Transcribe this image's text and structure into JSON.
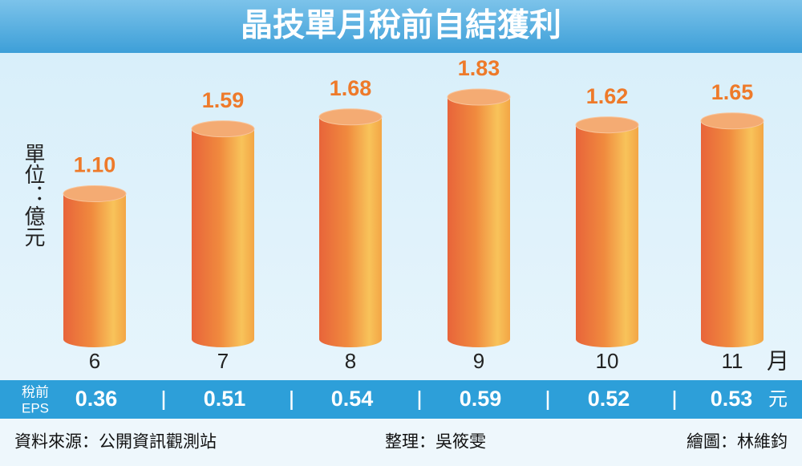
{
  "chart_data": {
    "type": "bar",
    "title": "晶技單月稅前自結獲利",
    "unit_label": "單位：億元",
    "categories": [
      "6",
      "7",
      "8",
      "9",
      "10",
      "11"
    ],
    "x_label": "月",
    "values": [
      1.1,
      1.59,
      1.68,
      1.83,
      1.62,
      1.65
    ],
    "value_labels": [
      "1.10",
      "1.59",
      "1.68",
      "1.83",
      "1.62",
      "1.65"
    ],
    "color": "#ef7a3a",
    "eps_label": [
      "稅前",
      "EPS"
    ],
    "eps_values": [
      0.36,
      0.51,
      0.54,
      0.59,
      0.52,
      0.53
    ],
    "eps_unit": "元",
    "source": "資料來源：公開資訊觀測站",
    "editor": "整理：吳筱雯",
    "artist": "繪圖：林維鈞"
  }
}
